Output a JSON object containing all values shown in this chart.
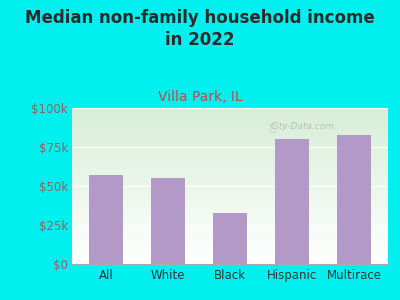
{
  "title": "Median non-family household income\nin 2022",
  "subtitle": "Villa Park, IL",
  "categories": [
    "All",
    "White",
    "Black",
    "Hispanic",
    "Multirace"
  ],
  "values": [
    57000,
    55000,
    33000,
    80000,
    83000
  ],
  "bar_color": "#b399c8",
  "background_color": "#00f0f0",
  "plot_bg_color_top": "#d8edd8",
  "plot_bg_color_bottom": "#ffffff",
  "title_color": "#2a2a2a",
  "subtitle_color": "#cc4444",
  "ytick_color": "#886666",
  "xtick_color": "#333333",
  "ylim": [
    0,
    100000
  ],
  "yticks": [
    0,
    25000,
    50000,
    75000,
    100000
  ],
  "ytick_labels": [
    "$0",
    "$25k",
    "$50k",
    "$75k",
    "$100k"
  ],
  "watermark": "City-Data.com",
  "title_fontsize": 12,
  "subtitle_fontsize": 10,
  "tick_fontsize": 8.5,
  "bar_width": 0.55
}
